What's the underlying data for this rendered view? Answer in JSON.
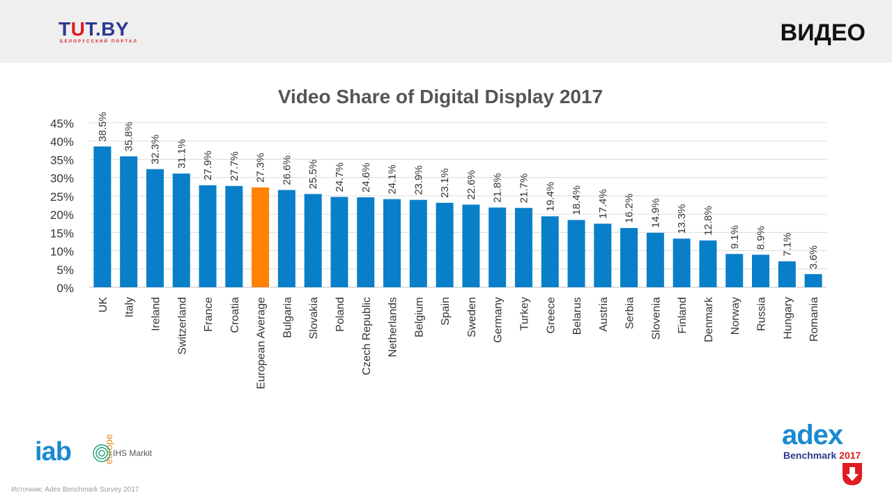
{
  "header": {
    "logo_text_main_a": "T",
    "logo_text_main_u": "U",
    "logo_text_main_b": "T.BY",
    "logo_subtitle": "БЕЛОРУССКИЙ ПОРТАЛ",
    "section_title": "ВИДЕО"
  },
  "footer": {
    "source": "Источник: Adex Benchmark Survey 2017",
    "iab_text": "iab",
    "iab_europe": "europe",
    "ihs_text": "IHS Markit",
    "adex_word": "adex",
    "adex_bench": "Benchmark",
    "adex_year": "2017"
  },
  "colors": {
    "bar": "#0a7fc9",
    "highlight_bar": "#ff8200",
    "grid": "#dcdcdc",
    "text": "#333333",
    "title": "#555555"
  },
  "chart_data": {
    "type": "bar",
    "title": "Video Share of Digital Display 2017",
    "xlabel": "",
    "ylabel": "",
    "ylim": [
      0,
      45
    ],
    "yticks": [
      "0%",
      "5%",
      "10%",
      "15%",
      "20%",
      "25%",
      "30%",
      "35%",
      "40%",
      "45%"
    ],
    "grid": true,
    "highlight": "European Average",
    "categories": [
      "UK",
      "Italy",
      "Ireland",
      "Switzerland",
      "France",
      "Croatia",
      "European Average",
      "Bulgaria",
      "Slovakia",
      "Poland",
      "Czech Republic",
      "Netherlands",
      "Belgium",
      "Spain",
      "Sweden",
      "Germany",
      "Turkey",
      "Greece",
      "Belarus",
      "Austria",
      "Serbia",
      "Slovenia",
      "Finland",
      "Denmark",
      "Norway",
      "Russia",
      "Hungary",
      "Romania"
    ],
    "values": [
      38.5,
      35.8,
      32.3,
      31.1,
      27.9,
      27.7,
      27.3,
      26.6,
      25.5,
      24.7,
      24.6,
      24.1,
      23.9,
      23.1,
      22.6,
      21.8,
      21.7,
      19.4,
      18.4,
      17.4,
      16.2,
      14.9,
      13.3,
      12.8,
      9.1,
      8.9,
      7.1,
      3.6
    ],
    "value_labels": [
      "38.5%",
      "35.8%",
      "32.3%",
      "31.1%",
      "27.9%",
      "27.7%",
      "27.3%",
      "26.6%",
      "25.5%",
      "24.7%",
      "24.6%",
      "24.1%",
      "23.9%",
      "23.1%",
      "22.6%",
      "21.8%",
      "21.7%",
      "19.4%",
      "18.4%",
      "17.4%",
      "16.2%",
      "14.9%",
      "13.3%",
      "12.8%",
      "9.1%",
      "8.9%",
      "7.1%",
      "3.6%"
    ]
  }
}
